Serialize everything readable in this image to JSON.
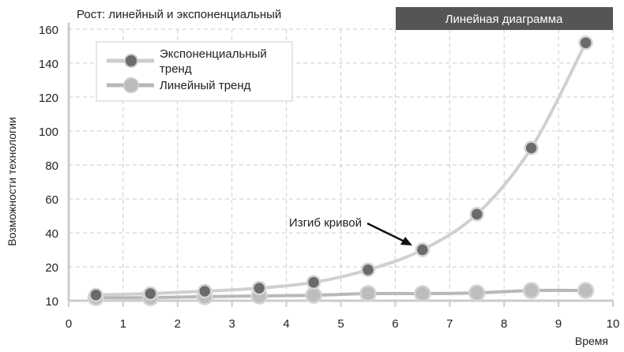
{
  "badge": "Линейная диаграмма",
  "colors": {
    "exponential": "#6b6b6b",
    "linear": "#b8b8b8",
    "line": "#cccccc",
    "badge": "#555555"
  },
  "chart_data": {
    "type": "line",
    "title": "Рост: линейный и экспоненциальный",
    "xlabel": "Время",
    "ylabel": "Возможности технологии",
    "xlim": [
      0,
      10
    ],
    "x_ticks": [
      "0",
      "1",
      "2",
      "3",
      "4",
      "5",
      "6",
      "7",
      "8",
      "9",
      "10"
    ],
    "y_ticks": [
      "10",
      "20",
      "40",
      "60",
      "80",
      "100",
      "120",
      "140",
      "160"
    ],
    "grid": true,
    "legend": "top-left",
    "x": [
      0.5,
      1.5,
      2.5,
      3.5,
      4.5,
      5.5,
      6.5,
      7.5,
      8.5,
      9.5
    ],
    "series": [
      {
        "name": "Экспоненциальный тренд",
        "values": [
          11.7,
          12.1,
          12.8,
          13.7,
          15.4,
          19.1,
          30,
          51,
          90,
          152
        ]
      },
      {
        "name": "Линейный тренд",
        "values": [
          10.9,
          10.9,
          11.2,
          11.4,
          11.6,
          12.1,
          12.1,
          12.3,
          13.0,
          13.0
        ]
      }
    ],
    "annotations": [
      {
        "text": "Изгиб кривой",
        "x": 6.5,
        "y": 30
      }
    ]
  }
}
